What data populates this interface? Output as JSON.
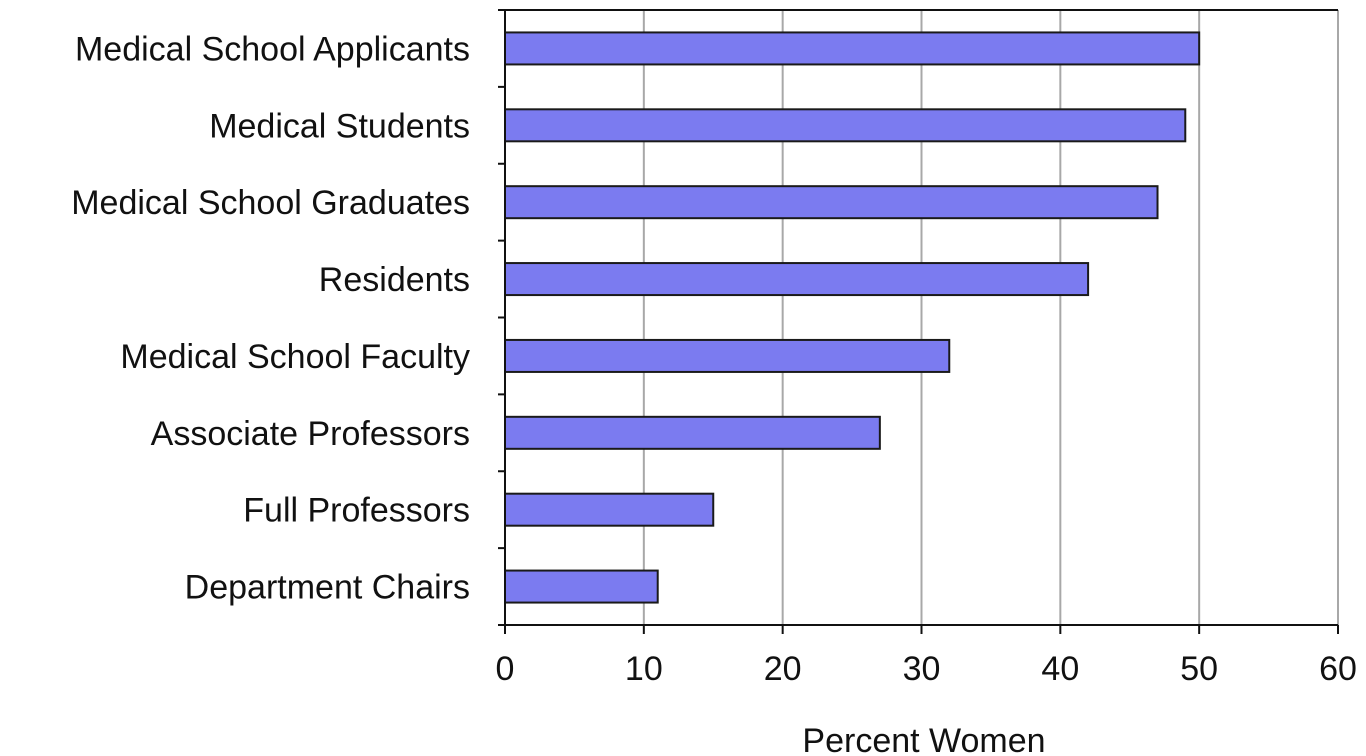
{
  "chart_data": {
    "type": "bar",
    "orientation": "horizontal",
    "categories": [
      "Medical School Applicants",
      "Medical Students",
      "Medical School Graduates",
      "Residents",
      "Medical School Faculty",
      "Associate Professors",
      "Full Professors",
      "Department Chairs"
    ],
    "values": [
      50,
      49,
      47,
      42,
      32,
      27,
      15,
      11
    ],
    "xlabel": "Percent Women",
    "ylabel": "",
    "title": "",
    "xlim": [
      0,
      60
    ],
    "xticks": [
      0,
      10,
      20,
      30,
      40,
      50,
      60
    ],
    "grid": "vertical",
    "legend": "none",
    "colors": {
      "bar_fill": "#7b7bf0",
      "bar_stroke": "#1a1a1a",
      "grid": "#a8a8a8",
      "axis": "#111111"
    }
  }
}
